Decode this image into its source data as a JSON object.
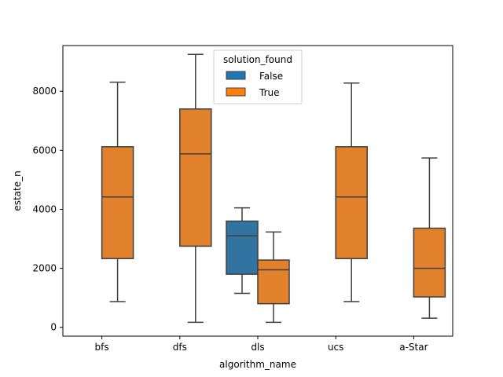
{
  "chart_data": {
    "type": "box",
    "xlabel": "algorithm_name",
    "ylabel": "estate_n",
    "categories": [
      "bfs",
      "dfs",
      "dls",
      "ucs",
      "a-Star"
    ],
    "ylim": [
      -300,
      9550
    ],
    "yticks": [
      0,
      2000,
      4000,
      6000,
      8000
    ],
    "grid": false,
    "legend": {
      "title": "solution_found",
      "position": "top-center",
      "entries": [
        {
          "label": "False",
          "color": "#1f77b4"
        },
        {
          "label": "True",
          "color": "#ff7f0e"
        }
      ]
    },
    "series": [
      {
        "name": "False",
        "color": "#3274a1",
        "boxes": [
          {
            "category": "dls",
            "whisker_low": 1150,
            "q1": 1800,
            "median": 3100,
            "q3": 3600,
            "whisker_high": 4050
          }
        ]
      },
      {
        "name": "True",
        "color": "#e1812c",
        "boxes": [
          {
            "category": "bfs",
            "whisker_low": 870,
            "q1": 2330,
            "median": 4420,
            "q3": 6120,
            "whisker_high": 8310
          },
          {
            "category": "dfs",
            "whisker_low": 170,
            "q1": 2750,
            "median": 5880,
            "q3": 7400,
            "whisker_high": 9250
          },
          {
            "category": "dls",
            "whisker_low": 170,
            "q1": 800,
            "median": 1950,
            "q3": 2280,
            "whisker_high": 3230
          },
          {
            "category": "ucs",
            "whisker_low": 870,
            "q1": 2330,
            "median": 4420,
            "q3": 6120,
            "whisker_high": 8280
          },
          {
            "category": "a-Star",
            "whisker_low": 310,
            "q1": 1030,
            "median": 2000,
            "q3": 3360,
            "whisker_high": 5740
          }
        ]
      }
    ]
  }
}
